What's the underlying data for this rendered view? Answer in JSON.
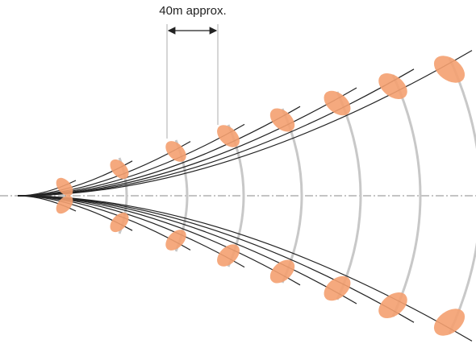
{
  "annotation": {
    "label": "40m approx."
  }
}
